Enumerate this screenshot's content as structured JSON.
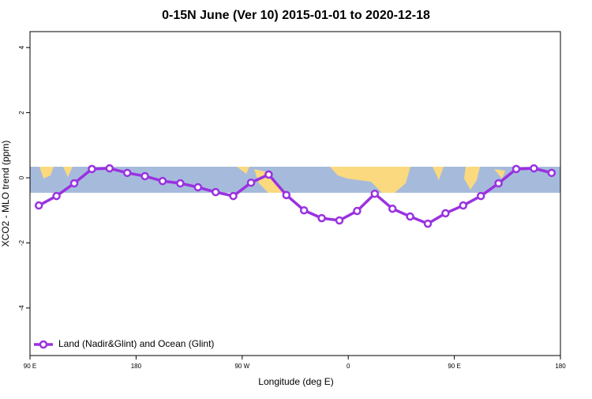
{
  "chart_data": {
    "type": "line",
    "title": "0-15N June (Ver 10)   2015-01-01 to 2020-12-18",
    "x_label": "Longitude (deg E)",
    "y_label": "XCO2 - MLO trend (ppm)",
    "x": [
      97.5,
      112.5,
      127.5,
      142.5,
      157.5,
      172.5,
      187.5,
      202.5,
      217.5,
      232.5,
      247.5,
      262.5,
      277.5,
      292.5,
      307.5,
      322.5,
      337.5,
      352.5,
      367.5,
      382.5,
      397.5,
      412.5,
      427.5,
      442.5,
      457.5,
      472.5,
      487.5,
      502.5,
      517.5,
      532.5
    ],
    "series": [
      {
        "name": "Land (Nadir&Glint) and Ocean (Glint)",
        "color": "#9932e0",
        "values": [
          -0.85,
          -0.56,
          -0.17,
          0.27,
          0.29,
          0.15,
          0.05,
          -0.1,
          -0.17,
          -0.29,
          -0.44,
          -0.56,
          -0.15,
          0.1,
          -0.53,
          -1.0,
          -1.24,
          -1.31,
          -1.02,
          -0.49,
          -0.95,
          -1.19,
          -1.41,
          -1.09,
          -0.85,
          -0.56,
          -0.17,
          0.27,
          0.29,
          0.15
        ]
      }
    ],
    "xlim": [
      90,
      540
    ],
    "xticks": [
      {
        "value": 90,
        "label": "90 E"
      },
      180,
      {
        "value": 270,
        "label": "90 W"
      },
      {
        "value": 360,
        "label": "0"
      },
      {
        "value": 450,
        "label": "90 E"
      },
      {
        "value": 540,
        "label": "180"
      }
    ],
    "ylim": [
      -5.46,
      4.49
    ],
    "yticks": [
      -4,
      -2,
      0,
      2,
      4
    ],
    "legend": "bottom-left"
  }
}
